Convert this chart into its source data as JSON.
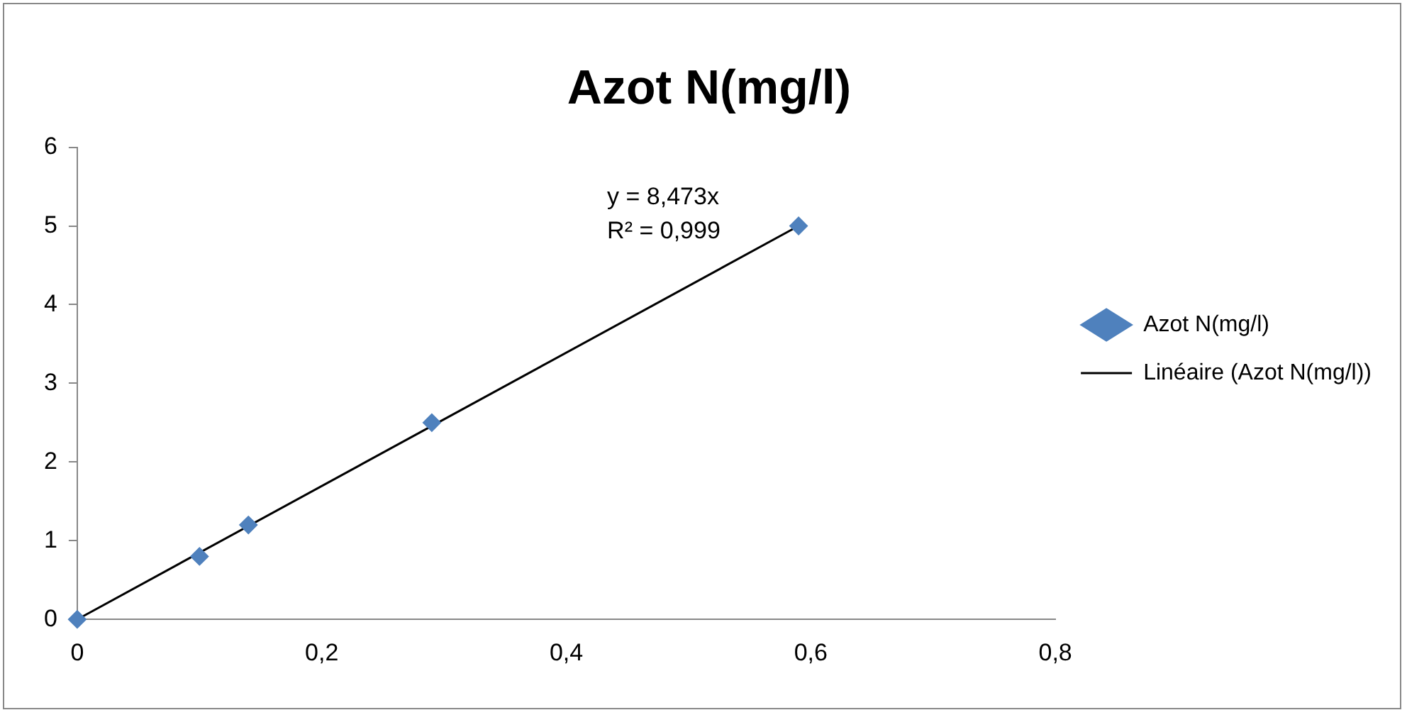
{
  "chart_data": {
    "type": "scatter",
    "title": "Azot N(mg/l)",
    "series": [
      {
        "name": "Azot N(mg/l)",
        "color": "#4f81bd",
        "x": [
          0,
          0.1,
          0.14,
          0.29,
          0.59
        ],
        "values": [
          0,
          0.8,
          1.2,
          2.5,
          5
        ]
      },
      {
        "name": "Linéaire (Azot N(mg/l))",
        "type": "line",
        "color": "#000000",
        "marker": "none",
        "line_style": "solid",
        "x": [
          0,
          0.59
        ],
        "values": [
          0,
          5
        ]
      }
    ],
    "xlim": [
      0,
      0.8
    ],
    "xticks": [
      0,
      {
        "value": 0.2,
        "label": "0,2"
      },
      {
        "value": 0.4,
        "label": "0,4"
      },
      {
        "value": 0.6,
        "label": "0,6"
      },
      {
        "value": 0.8,
        "label": "0,8"
      }
    ],
    "ylim": [
      0,
      6
    ],
    "yticks": [
      0,
      1,
      2,
      3,
      4,
      5,
      6
    ],
    "grid": false,
    "legend": "right",
    "marker": "diamond",
    "annotations": [
      "y = 8,473x",
      "R² = 0,999"
    ]
  }
}
